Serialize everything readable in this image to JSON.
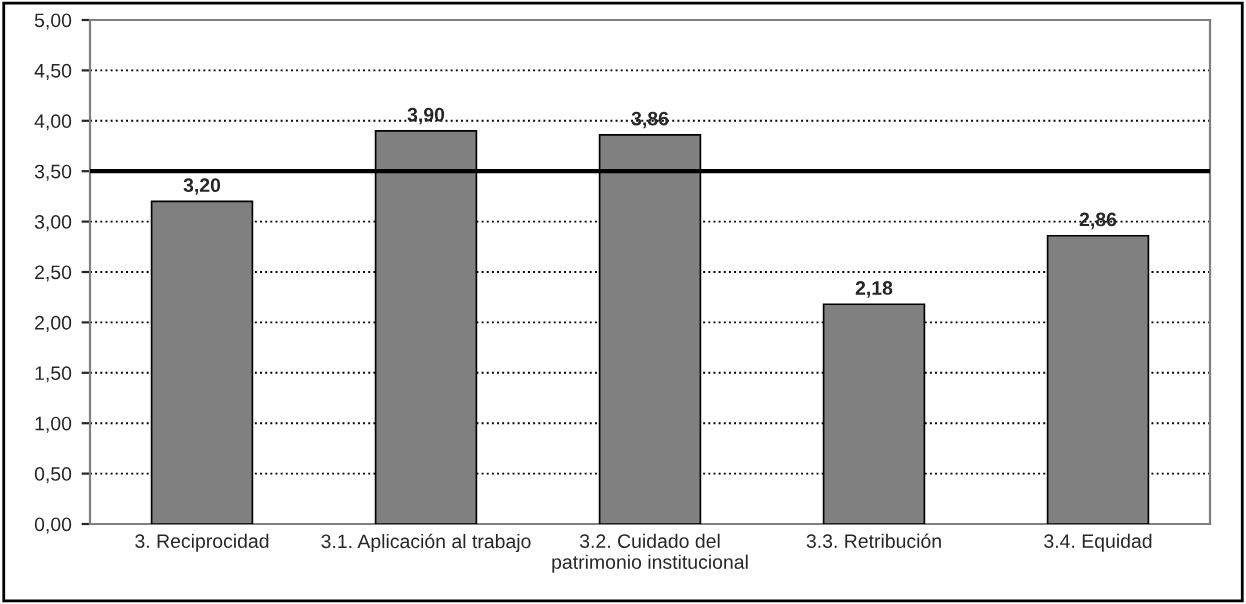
{
  "chart_data": {
    "type": "bar",
    "categories": [
      "3. Reciprocidad",
      "3.1. Aplicación al trabajo",
      "3.2. Cuidado del\npatrimonio institucional",
      "3.3. Retribución",
      "3.4. Equidad"
    ],
    "values": [
      3.2,
      3.9,
      3.86,
      2.18,
      2.86
    ],
    "value_labels": [
      "3,20",
      "3,90",
      "3,86",
      "2,18",
      "2,86"
    ],
    "color": "#808080",
    "ylim": [
      0,
      5
    ],
    "yticks": [
      {
        "value": 0,
        "label": "0,00"
      },
      {
        "value": 0.5,
        "label": "0,50"
      },
      {
        "value": 1,
        "label": "1,00"
      },
      {
        "value": 1.5,
        "label": "1,50"
      },
      {
        "value": 2,
        "label": "2,00"
      },
      {
        "value": 2.5,
        "label": "2,50"
      },
      {
        "value": 3,
        "label": "3,00"
      },
      {
        "value": 3.5,
        "label": "3,50"
      },
      {
        "value": 4,
        "label": "4,00"
      },
      {
        "value": 4.5,
        "label": "4,50"
      },
      {
        "value": 5,
        "label": "5,00"
      }
    ],
    "grid": "y",
    "ref_lines": [
      {
        "axis": "y",
        "value": 3.5,
        "color": "#000000"
      }
    ]
  }
}
